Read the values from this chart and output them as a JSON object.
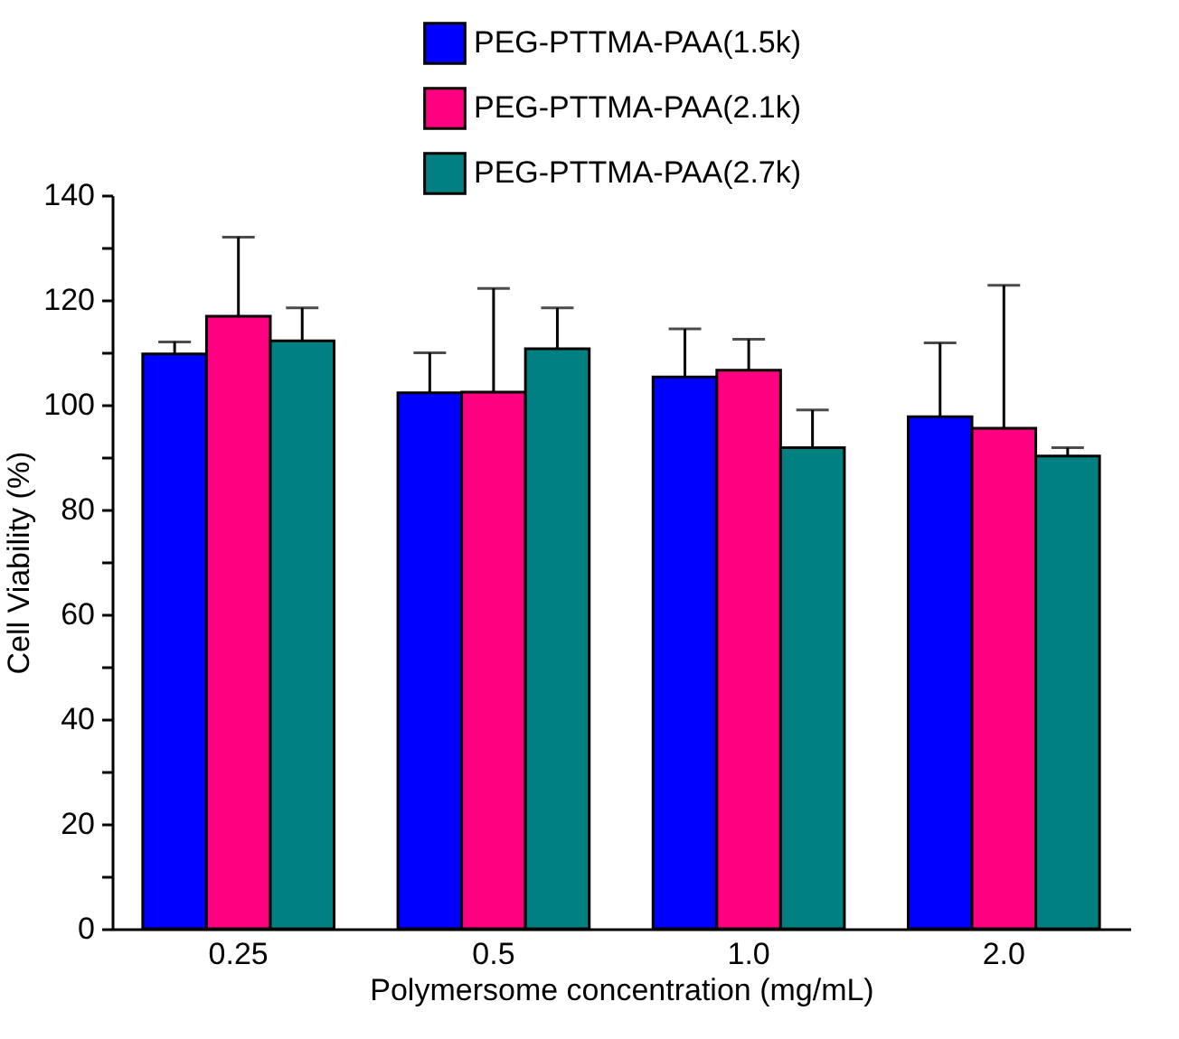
{
  "chart_data": {
    "type": "bar",
    "xlabel": "Polymersome concentration (mg/mL)",
    "ylabel": "Cell Viability (%)",
    "categories": [
      "0.25",
      "0.5",
      "1.0",
      "2.0"
    ],
    "series": [
      {
        "name": "PEG-PTTMA-PAA(1.5k)",
        "color": "#0000ff",
        "values": [
          109.7,
          102.3,
          105.3,
          97.7
        ],
        "errors": [
          [
            109.7,
            112
          ],
          [
            102.3,
            109.9
          ],
          [
            105.3,
            114.5
          ],
          [
            97.7,
            111.8
          ]
        ]
      },
      {
        "name": "PEG-PTTMA-PAA(2.1k)",
        "color": "#ff0080",
        "values": [
          116.9,
          102.4,
          106.6,
          95.5
        ],
        "errors": [
          [
            116.9,
            132
          ],
          [
            102.4,
            122.2
          ],
          [
            106.6,
            112.5
          ],
          [
            95.5,
            122.8
          ]
        ]
      },
      {
        "name": "PEG-PTTMA-PAA(2.7k)",
        "color": "#008080",
        "values": [
          112.2,
          110.7,
          91.8,
          90.2
        ],
        "errors": [
          [
            112.2,
            118.5
          ],
          [
            110.7,
            118.5
          ],
          [
            91.8,
            99
          ],
          [
            90.2,
            91.8
          ]
        ]
      }
    ],
    "ylim": [
      0,
      140
    ],
    "yticks": [
      0,
      {
        "value": 10,
        "label": null
      },
      20,
      {
        "value": 30,
        "label": null
      },
      40,
      {
        "value": 50,
        "label": null
      },
      60,
      {
        "value": 70,
        "label": null
      },
      80,
      {
        "value": 90,
        "label": null
      },
      100,
      {
        "value": 110,
        "label": null
      },
      120,
      {
        "value": 130,
        "label": null
      },
      140
    ],
    "grid": false,
    "legend": "top right"
  }
}
